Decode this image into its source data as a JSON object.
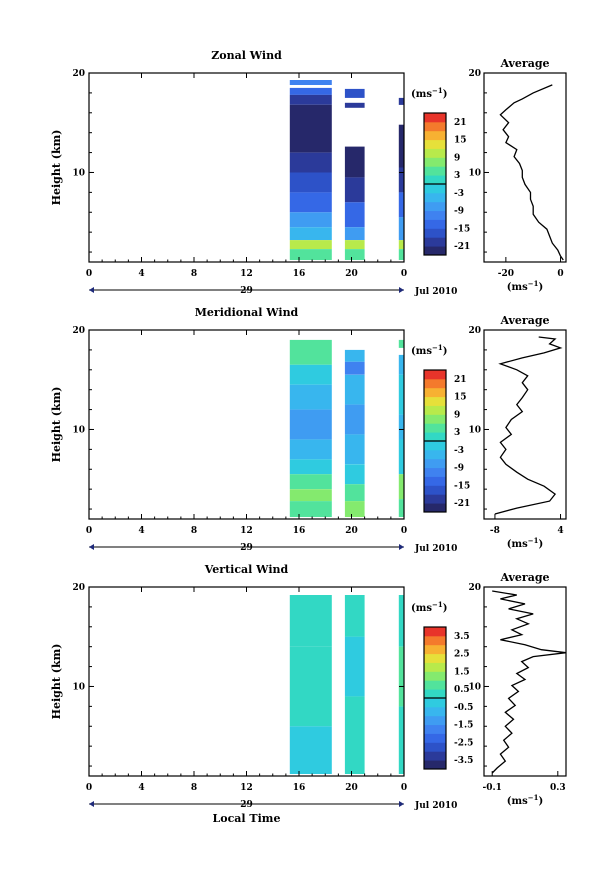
{
  "figure": {
    "date_label": "Jul 2010",
    "time_axis_label": "Local Time",
    "height_axis_label": "Height (km)",
    "day_marker": "29",
    "profile_title": "Average",
    "unit_main": "(ms",
    "unit_sup": "−1",
    "unit_close": ")"
  },
  "chart_data": [
    {
      "type": "heatmap",
      "title": "Zonal Wind",
      "ylabel": "Height (km)",
      "xlabel": "",
      "x_ticks": [
        "0",
        "4",
        "8",
        "12",
        "16",
        "20",
        "0"
      ],
      "y_ticks": [
        "20",
        "10"
      ],
      "ylim": [
        1,
        20
      ],
      "data_windows_local_time": [
        [
          15.3,
          18.5
        ],
        [
          19.5,
          21.0
        ],
        [
          23.6,
          24.0
        ]
      ],
      "colorbar": {
        "unit": "(ms−1)",
        "range": [
          -24,
          24
        ],
        "ticks": [
          "21",
          "15",
          "9",
          "3",
          "-3",
          "-9",
          "-15",
          "-21"
        ]
      },
      "profile": {
        "title": "Average",
        "xlabel": "(ms−1)",
        "x_ticks": [
          "-20",
          "0"
        ],
        "y_ticks": [
          "20",
          "10"
        ],
        "xlim": [
          -28,
          2
        ],
        "ylim": [
          1,
          20
        ],
        "points": [
          [
            -3,
            18.8
          ],
          [
            -10,
            18.0
          ],
          [
            -14,
            17.4
          ],
          [
            -17,
            17.0
          ],
          [
            -20,
            16.3
          ],
          [
            -22,
            15.8
          ],
          [
            -19,
            15.0
          ],
          [
            -21,
            14.3
          ],
          [
            -19,
            13.6
          ],
          [
            -20,
            13.0
          ],
          [
            -16,
            12.3
          ],
          [
            -17,
            11.6
          ],
          [
            -15,
            10.9
          ],
          [
            -14,
            10.2
          ],
          [
            -14,
            9.5
          ],
          [
            -13,
            8.8
          ],
          [
            -11,
            8.0
          ],
          [
            -11,
            7.3
          ],
          [
            -10,
            6.6
          ],
          [
            -10,
            5.8
          ],
          [
            -8,
            5.0
          ],
          [
            -5,
            4.3
          ],
          [
            -4,
            3.6
          ],
          [
            -3,
            2.9
          ],
          [
            -1,
            2.2
          ],
          [
            0,
            1.6
          ],
          [
            1,
            1.2
          ]
        ]
      },
      "series": [
        {
          "name": "",
          "window": 0,
          "rows": [
            [
              19.3,
              18.8,
              -12
            ],
            [
              18.5,
              17.8,
              -15
            ],
            [
              17.8,
              16.8,
              -21
            ],
            [
              16.8,
              12.0,
              -24
            ],
            [
              12.0,
              10.0,
              -21
            ],
            [
              10.0,
              8.0,
              -18
            ],
            [
              8.0,
              6.0,
              -15
            ],
            [
              6.0,
              4.5,
              -9
            ],
            [
              4.5,
              3.2,
              -6
            ],
            [
              3.2,
              2.3,
              9
            ],
            [
              2.3,
              1.2,
              3
            ]
          ]
        },
        {
          "name": "",
          "window": 1,
          "rows": [
            [
              18.4,
              17.5,
              -18
            ],
            [
              17.0,
              16.5,
              -21
            ],
            [
              12.6,
              9.5,
              -24
            ],
            [
              9.5,
              7.0,
              -21
            ],
            [
              7.0,
              4.5,
              -15
            ],
            [
              4.5,
              3.2,
              -9
            ],
            [
              3.2,
              2.3,
              9
            ],
            [
              2.3,
              1.2,
              3
            ]
          ]
        },
        {
          "name": "",
          "window": 2,
          "rows": [
            [
              17.5,
              16.8,
              -21
            ],
            [
              14.8,
              10.5,
              -24
            ],
            [
              10.5,
              8.0,
              -21
            ],
            [
              8.0,
              5.5,
              -15
            ],
            [
              5.5,
              3.2,
              -9
            ],
            [
              3.2,
              2.3,
              9
            ],
            [
              2.3,
              1.2,
              3
            ]
          ]
        }
      ]
    },
    {
      "type": "heatmap",
      "title": "Meridional Wind",
      "ylabel": "Height (km)",
      "xlabel": "",
      "x_ticks": [
        "0",
        "4",
        "8",
        "12",
        "16",
        "20",
        "0"
      ],
      "y_ticks": [
        "20",
        "10"
      ],
      "ylim": [
        1,
        20
      ],
      "data_windows_local_time": [
        [
          15.3,
          18.5
        ],
        [
          19.5,
          21.0
        ],
        [
          23.6,
          24.0
        ]
      ],
      "colorbar": {
        "unit": "(ms−1)",
        "range": [
          -24,
          24
        ],
        "ticks": [
          "21",
          "15",
          "9",
          "3",
          "-3",
          "-9",
          "-15",
          "-21"
        ]
      },
      "profile": {
        "title": "Average",
        "xlabel": "(ms−1)",
        "x_ticks": [
          "-8",
          "4"
        ],
        "y_ticks": [
          "20",
          "10"
        ],
        "xlim": [
          -10,
          5
        ],
        "ylim": [
          1,
          20
        ],
        "points": [
          [
            0,
            19.3
          ],
          [
            3,
            19.1
          ],
          [
            2,
            18.6
          ],
          [
            4,
            18.2
          ],
          [
            1,
            17.7
          ],
          [
            -3,
            17.2
          ],
          [
            -7,
            16.6
          ],
          [
            -4,
            16.0
          ],
          [
            -2,
            15.4
          ],
          [
            -3,
            14.7
          ],
          [
            -2,
            14.0
          ],
          [
            -3,
            13.2
          ],
          [
            -4,
            12.5
          ],
          [
            -3,
            11.8
          ],
          [
            -5,
            11.0
          ],
          [
            -6,
            10.2
          ],
          [
            -5,
            9.5
          ],
          [
            -7,
            8.7
          ],
          [
            -6,
            8.0
          ],
          [
            -7,
            7.2
          ],
          [
            -6,
            6.5
          ],
          [
            -4,
            5.7
          ],
          [
            -2,
            5.0
          ],
          [
            1,
            4.3
          ],
          [
            3,
            3.5
          ],
          [
            2,
            2.8
          ],
          [
            -4,
            2.1
          ],
          [
            -8,
            1.5
          ]
        ]
      },
      "series": [
        {
          "name": "",
          "window": 0,
          "rows": [
            [
              19.0,
              16.5,
              3
            ],
            [
              16.5,
              14.5,
              -3
            ],
            [
              14.5,
              12.0,
              -6
            ],
            [
              12.0,
              9.0,
              -9
            ],
            [
              9.0,
              7.0,
              -6
            ],
            [
              7.0,
              5.5,
              -3
            ],
            [
              5.5,
              4.0,
              3
            ],
            [
              4.0,
              2.8,
              6
            ],
            [
              2.8,
              1.2,
              3
            ]
          ]
        },
        {
          "name": "",
          "window": 1,
          "rows": [
            [
              18.0,
              16.8,
              -6
            ],
            [
              16.8,
              15.5,
              -12
            ],
            [
              15.5,
              12.5,
              -6
            ],
            [
              12.5,
              9.5,
              -9
            ],
            [
              9.5,
              6.5,
              -6
            ],
            [
              6.5,
              4.5,
              -3
            ],
            [
              4.5,
              2.8,
              3
            ],
            [
              2.8,
              1.2,
              6
            ]
          ]
        },
        {
          "name": "",
          "window": 2,
          "rows": [
            [
              19.0,
              18.2,
              3
            ],
            [
              17.5,
              15.5,
              -6
            ],
            [
              15.5,
              11.5,
              -3
            ],
            [
              11.5,
              9.0,
              -6
            ],
            [
              9.0,
              5.5,
              -3
            ],
            [
              5.5,
              3.0,
              6
            ],
            [
              3.0,
              1.2,
              3
            ]
          ]
        }
      ]
    },
    {
      "type": "heatmap",
      "title": "Vertical Wind",
      "ylabel": "Height (km)",
      "xlabel": "Local Time",
      "x_ticks": [
        "0",
        "4",
        "8",
        "12",
        "16",
        "20",
        "0"
      ],
      "y_ticks": [
        "20",
        "10"
      ],
      "ylim": [
        1,
        20
      ],
      "data_windows_local_time": [
        [
          15.3,
          18.5
        ],
        [
          19.5,
          21.0
        ],
        [
          23.6,
          24.0
        ]
      ],
      "colorbar": {
        "unit": "(ms−1)",
        "range": [
          -4,
          4
        ],
        "ticks": [
          "3.5",
          "2.5",
          "1.5",
          "0.5",
          "-0.5",
          "-1.5",
          "-2.5",
          "-3.5"
        ]
      },
      "profile": {
        "title": "Average",
        "xlabel": "(ms−1)",
        "x_ticks": [
          "-0.1",
          "0.3"
        ],
        "y_ticks": [
          "20",
          "10"
        ],
        "xlim": [
          -0.15,
          0.35
        ],
        "ylim": [
          1,
          20
        ],
        "points": [
          [
            -0.1,
            19.6
          ],
          [
            0.05,
            19.2
          ],
          [
            -0.05,
            18.8
          ],
          [
            0.1,
            18.3
          ],
          [
            0.0,
            17.8
          ],
          [
            0.15,
            17.3
          ],
          [
            0.05,
            16.8
          ],
          [
            0.12,
            16.3
          ],
          [
            0.02,
            15.7
          ],
          [
            0.08,
            15.2
          ],
          [
            -0.05,
            14.7
          ],
          [
            0.1,
            14.2
          ],
          [
            0.2,
            13.7
          ],
          [
            0.35,
            13.4
          ],
          [
            0.15,
            13.0
          ],
          [
            0.08,
            12.5
          ],
          [
            0.12,
            11.9
          ],
          [
            0.05,
            11.3
          ],
          [
            0.1,
            10.7
          ],
          [
            0.02,
            10.1
          ],
          [
            0.06,
            9.5
          ],
          [
            0.0,
            8.8
          ],
          [
            0.04,
            8.1
          ],
          [
            -0.02,
            7.4
          ],
          [
            0.03,
            6.7
          ],
          [
            -0.02,
            6.0
          ],
          [
            0.02,
            5.3
          ],
          [
            -0.03,
            4.6
          ],
          [
            0.0,
            3.9
          ],
          [
            -0.05,
            3.2
          ],
          [
            -0.02,
            2.5
          ],
          [
            -0.07,
            1.8
          ],
          [
            -0.1,
            1.3
          ]
        ]
      },
      "series": [
        {
          "name": "",
          "window": 0,
          "rows": [
            [
              19.2,
              14.0,
              0.0
            ],
            [
              14.0,
              10.0,
              0.2
            ],
            [
              10.0,
              6.0,
              0.0
            ],
            [
              6.0,
              1.2,
              -0.2
            ]
          ]
        },
        {
          "name": "",
          "window": 1,
          "rows": [
            [
              19.2,
              15.0,
              0.0
            ],
            [
              15.0,
              9.0,
              -0.1
            ],
            [
              9.0,
              1.2,
              0.0
            ]
          ]
        },
        {
          "name": "",
          "window": 2,
          "rows": [
            [
              19.2,
              14.0,
              0.2
            ],
            [
              14.0,
              8.0,
              0.5
            ],
            [
              8.0,
              1.2,
              0.1
            ]
          ]
        }
      ]
    }
  ]
}
